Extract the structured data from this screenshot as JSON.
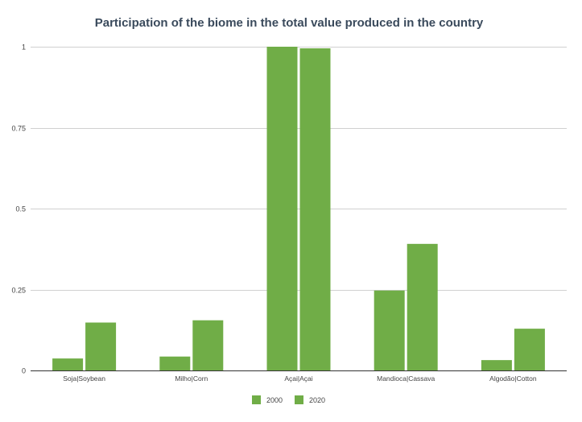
{
  "chart_data": {
    "type": "bar",
    "title": "Participation of the biome in the total value produced in the country",
    "xlabel": "",
    "ylabel": "",
    "categories": [
      "Soja|Soybean",
      "Milho|Corn",
      "Açai|Açai",
      "Mandioca|Cassava",
      "Algodão|Cotton"
    ],
    "series": [
      {
        "name": "2000",
        "values": [
          0.037,
          0.043,
          1.0,
          0.247,
          0.032
        ]
      },
      {
        "name": "2020",
        "values": [
          0.148,
          0.155,
          0.995,
          0.391,
          0.129
        ]
      }
    ],
    "ylim": [
      0,
      1
    ],
    "yticks": [
      "0",
      "0.25",
      "0.5",
      "0.75",
      "1"
    ],
    "grid": true,
    "legend_position": "bottom",
    "colors": {
      "bar": "#70ad47"
    }
  }
}
